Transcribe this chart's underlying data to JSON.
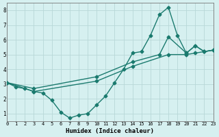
{
  "line1_x": [
    0,
    1,
    2,
    3,
    4,
    5,
    6,
    7,
    8,
    9,
    10,
    11,
    12,
    13,
    14,
    15,
    16,
    17,
    18,
    19,
    20,
    21,
    22,
    23
  ],
  "line1_y": [
    3.1,
    2.8,
    2.7,
    2.5,
    2.4,
    1.9,
    1.1,
    0.7,
    0.9,
    1.0,
    1.6,
    2.2,
    3.1,
    4.0,
    5.1,
    5.2,
    6.3,
    7.7,
    8.2,
    6.3,
    5.1,
    5.6,
    5.2,
    5.3
  ],
  "line2_x": [
    0,
    3,
    10,
    14,
    17,
    18,
    20,
    21,
    22,
    23
  ],
  "line2_y": [
    3.1,
    2.7,
    3.5,
    4.5,
    5.0,
    6.2,
    5.1,
    5.6,
    5.2,
    5.3
  ],
  "line3_x": [
    0,
    3,
    10,
    14,
    18,
    20,
    21,
    22,
    23
  ],
  "line3_y": [
    3.1,
    2.5,
    3.2,
    4.2,
    5.0,
    5.0,
    5.1,
    5.2,
    5.3
  ],
  "line_color": "#1a7a6e",
  "bg_color": "#d6f0f0",
  "grid_color": "#b8d8d8",
  "xlabel": "Humidex (Indice chaleur)",
  "xlim": [
    0,
    23
  ],
  "ylim": [
    0.5,
    8.5
  ],
  "yticks": [
    1,
    2,
    3,
    4,
    5,
    6,
    7,
    8
  ],
  "xticks": [
    0,
    1,
    2,
    3,
    4,
    5,
    6,
    7,
    8,
    9,
    10,
    11,
    12,
    13,
    14,
    15,
    16,
    17,
    18,
    19,
    20,
    21,
    22,
    23
  ],
  "marker": "D",
  "markersize": 2.5,
  "linewidth": 1.0
}
